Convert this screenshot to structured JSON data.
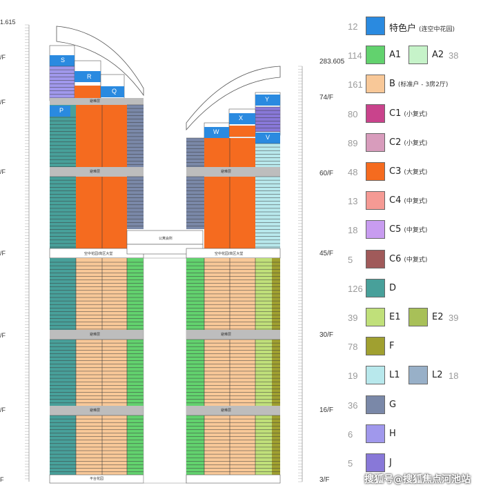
{
  "elevations": {
    "left_top": "1.615",
    "right_top": "283.605"
  },
  "floor_labels": {
    "left": [
      "/F",
      "/F",
      "/F",
      "/F",
      "/F",
      "/F",
      "F"
    ],
    "right": [
      "74/F",
      "60/F",
      "45/F",
      "30/F",
      "16/F",
      "3/F"
    ]
  },
  "tower_labels": {
    "refuge": "避难层",
    "sky_garden": "空中花园/高区大堂",
    "bridge": "公寓会所",
    "podium": "平台花园"
  },
  "legend": [
    {
      "count": "12",
      "name": "特色户",
      "note": "(连空中花园)",
      "color": "#2a8ae0"
    },
    {
      "count": "114",
      "name": "A1",
      "color": "#62d26e",
      "name2": "A2",
      "color2": "#c6f3c9",
      "count2": "38"
    },
    {
      "count": "161",
      "name": "B",
      "note": "(标准户 - 3房2厅)",
      "color": "#f8c898"
    },
    {
      "count": "80",
      "name": "C1",
      "note": "(小复式)",
      "color": "#c9438c"
    },
    {
      "count": "89",
      "name": "C2",
      "note": "(小复式)",
      "color": "#d89cbc"
    },
    {
      "count": "48",
      "name": "C3",
      "note": "(大复式)",
      "color": "#f56b1f"
    },
    {
      "count": "13",
      "name": "C4",
      "note": "(中复式)",
      "color": "#f59a94"
    },
    {
      "count": "18",
      "name": "C5",
      "note": "(中复式)",
      "color": "#c89cf0"
    },
    {
      "count": "5",
      "name": "C6",
      "note": "(中复式)",
      "color": "#a05a5a"
    },
    {
      "count": "126",
      "name": "D",
      "color": "#48a09a"
    },
    {
      "count": "39",
      "name": "E1",
      "color": "#c0e07a",
      "name2": "E2",
      "color2": "#a8c058",
      "count2": "39"
    },
    {
      "count": "78",
      "name": "F",
      "color": "#a0a030"
    },
    {
      "count": "19",
      "name": "L1",
      "color": "#b8e8ec",
      "name2": "L2",
      "color2": "#98b0c8",
      "count2": "18"
    },
    {
      "count": "36",
      "name": "G",
      "color": "#7a88a8"
    },
    {
      "count": "6",
      "name": "H",
      "color": "#a098ec"
    },
    {
      "count": "5",
      "name": "J",
      "color": "#8878d8"
    }
  ],
  "tower_units": {
    "left": [
      "S",
      "R",
      "Q",
      "P"
    ],
    "right": [
      "Y",
      "X",
      "W",
      "V"
    ]
  },
  "watermark": "搜狐号@搜狐焦点河池站"
}
